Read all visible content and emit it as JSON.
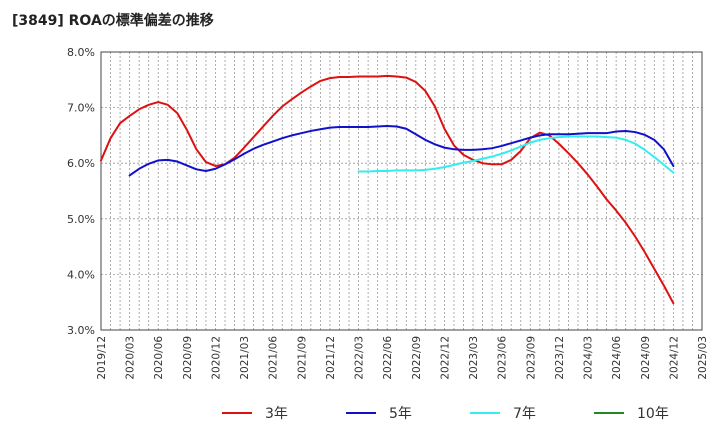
{
  "chart_data": {
    "type": "line",
    "title": "[3849]  ROAの標準偏差の推移",
    "xlabel": "",
    "ylabel": "",
    "ylim": [
      3.0,
      8.0
    ],
    "y_ticks": [
      "3.0%",
      "4.0%",
      "5.0%",
      "6.0%",
      "7.0%",
      "8.0%"
    ],
    "y_tick_values": [
      3,
      4,
      5,
      6,
      7,
      8
    ],
    "x_range": [
      "2019/12",
      "2025/03"
    ],
    "x_ticks": [
      "2019/12",
      "2020/03",
      "2020/06",
      "2020/09",
      "2020/12",
      "2021/03",
      "2021/06",
      "2021/09",
      "2021/12",
      "2022/03",
      "2022/06",
      "2022/09",
      "2022/12",
      "2023/03",
      "2023/06",
      "2023/09",
      "2023/12",
      "2024/03",
      "2024/06",
      "2024/09",
      "2024/12",
      "2025/03"
    ],
    "grid": true,
    "legend_position": "bottom",
    "series": [
      {
        "name": "3年",
        "color": "#dd1111",
        "points": [
          [
            "2019/12",
            6.05
          ],
          [
            "2020/01",
            6.45
          ],
          [
            "2020/02",
            6.72
          ],
          [
            "2020/03",
            6.85
          ],
          [
            "2020/04",
            6.97
          ],
          [
            "2020/05",
            7.05
          ],
          [
            "2020/06",
            7.1
          ],
          [
            "2020/07",
            7.05
          ],
          [
            "2020/08",
            6.9
          ],
          [
            "2020/09",
            6.6
          ],
          [
            "2020/10",
            6.25
          ],
          [
            "2020/11",
            6.02
          ],
          [
            "2020/12",
            5.95
          ],
          [
            "2021/01",
            5.98
          ],
          [
            "2021/02",
            6.1
          ],
          [
            "2021/03",
            6.28
          ],
          [
            "2021/04",
            6.47
          ],
          [
            "2021/05",
            6.66
          ],
          [
            "2021/06",
            6.85
          ],
          [
            "2021/07",
            7.02
          ],
          [
            "2021/08",
            7.15
          ],
          [
            "2021/09",
            7.27
          ],
          [
            "2021/10",
            7.38
          ],
          [
            "2021/11",
            7.48
          ],
          [
            "2021/12",
            7.53
          ],
          [
            "2022/01",
            7.55
          ],
          [
            "2022/02",
            7.55
          ],
          [
            "2022/03",
            7.56
          ],
          [
            "2022/04",
            7.56
          ],
          [
            "2022/05",
            7.56
          ],
          [
            "2022/06",
            7.57
          ],
          [
            "2022/07",
            7.56
          ],
          [
            "2022/08",
            7.54
          ],
          [
            "2022/09",
            7.46
          ],
          [
            "2022/10",
            7.3
          ],
          [
            "2022/11",
            7.02
          ],
          [
            "2022/12",
            6.62
          ],
          [
            "2023/01",
            6.32
          ],
          [
            "2023/02",
            6.15
          ],
          [
            "2023/03",
            6.06
          ],
          [
            "2023/04",
            6.0
          ],
          [
            "2023/05",
            5.98
          ],
          [
            "2023/06",
            5.98
          ],
          [
            "2023/07",
            6.06
          ],
          [
            "2023/08",
            6.22
          ],
          [
            "2023/09",
            6.45
          ],
          [
            "2023/10",
            6.55
          ],
          [
            "2023/11",
            6.5
          ],
          [
            "2023/12",
            6.35
          ],
          [
            "2024/01",
            6.18
          ],
          [
            "2024/02",
            6.0
          ],
          [
            "2024/03",
            5.8
          ],
          [
            "2024/04",
            5.58
          ],
          [
            "2024/05",
            5.35
          ],
          [
            "2024/06",
            5.15
          ],
          [
            "2024/07",
            4.93
          ],
          [
            "2024/08",
            4.68
          ],
          [
            "2024/09",
            4.4
          ],
          [
            "2024/10",
            4.1
          ],
          [
            "2024/11",
            3.8
          ],
          [
            "2024/12",
            3.48
          ]
        ]
      },
      {
        "name": "5年",
        "color": "#1111cc",
        "points": [
          [
            "2020/03",
            5.78
          ],
          [
            "2020/04",
            5.9
          ],
          [
            "2020/05",
            5.99
          ],
          [
            "2020/06",
            6.05
          ],
          [
            "2020/07",
            6.06
          ],
          [
            "2020/08",
            6.03
          ],
          [
            "2020/09",
            5.96
          ],
          [
            "2020/10",
            5.89
          ],
          [
            "2020/11",
            5.86
          ],
          [
            "2020/12",
            5.9
          ],
          [
            "2021/01",
            5.98
          ],
          [
            "2021/02",
            6.07
          ],
          [
            "2021/03",
            6.17
          ],
          [
            "2021/04",
            6.26
          ],
          [
            "2021/05",
            6.33
          ],
          [
            "2021/06",
            6.39
          ],
          [
            "2021/07",
            6.45
          ],
          [
            "2021/08",
            6.5
          ],
          [
            "2021/09",
            6.54
          ],
          [
            "2021/10",
            6.58
          ],
          [
            "2021/11",
            6.61
          ],
          [
            "2021/12",
            6.64
          ],
          [
            "2022/01",
            6.65
          ],
          [
            "2022/02",
            6.65
          ],
          [
            "2022/03",
            6.65
          ],
          [
            "2022/04",
            6.65
          ],
          [
            "2022/05",
            6.66
          ],
          [
            "2022/06",
            6.67
          ],
          [
            "2022/07",
            6.66
          ],
          [
            "2022/08",
            6.62
          ],
          [
            "2022/09",
            6.52
          ],
          [
            "2022/10",
            6.42
          ],
          [
            "2022/11",
            6.34
          ],
          [
            "2022/12",
            6.28
          ],
          [
            "2023/01",
            6.25
          ],
          [
            "2023/02",
            6.24
          ],
          [
            "2023/03",
            6.24
          ],
          [
            "2023/04",
            6.25
          ],
          [
            "2023/05",
            6.27
          ],
          [
            "2023/06",
            6.31
          ],
          [
            "2023/07",
            6.36
          ],
          [
            "2023/08",
            6.41
          ],
          [
            "2023/09",
            6.46
          ],
          [
            "2023/10",
            6.5
          ],
          [
            "2023/11",
            6.52
          ],
          [
            "2023/12",
            6.52
          ],
          [
            "2024/01",
            6.52
          ],
          [
            "2024/02",
            6.53
          ],
          [
            "2024/03",
            6.54
          ],
          [
            "2024/04",
            6.54
          ],
          [
            "2024/05",
            6.54
          ],
          [
            "2024/06",
            6.57
          ],
          [
            "2024/07",
            6.58
          ],
          [
            "2024/08",
            6.56
          ],
          [
            "2024/09",
            6.51
          ],
          [
            "2024/10",
            6.42
          ],
          [
            "2024/11",
            6.25
          ],
          [
            "2024/12",
            5.95
          ]
        ]
      },
      {
        "name": "7年",
        "color": "#33eeee",
        "points": [
          [
            "2022/03",
            5.85
          ],
          [
            "2022/04",
            5.85
          ],
          [
            "2022/05",
            5.86
          ],
          [
            "2022/06",
            5.86
          ],
          [
            "2022/07",
            5.87
          ],
          [
            "2022/08",
            5.87
          ],
          [
            "2022/09",
            5.87
          ],
          [
            "2022/10",
            5.88
          ],
          [
            "2022/11",
            5.9
          ],
          [
            "2022/12",
            5.93
          ],
          [
            "2023/01",
            5.97
          ],
          [
            "2023/02",
            6.01
          ],
          [
            "2023/03",
            6.04
          ],
          [
            "2023/04",
            6.08
          ],
          [
            "2023/05",
            6.12
          ],
          [
            "2023/06",
            6.17
          ],
          [
            "2023/07",
            6.23
          ],
          [
            "2023/08",
            6.3
          ],
          [
            "2023/09",
            6.37
          ],
          [
            "2023/10",
            6.42
          ],
          [
            "2023/11",
            6.45
          ],
          [
            "2023/12",
            6.47
          ],
          [
            "2024/01",
            6.48
          ],
          [
            "2024/02",
            6.48
          ],
          [
            "2024/03",
            6.48
          ],
          [
            "2024/04",
            6.48
          ],
          [
            "2024/05",
            6.47
          ],
          [
            "2024/06",
            6.46
          ],
          [
            "2024/07",
            6.42
          ],
          [
            "2024/08",
            6.35
          ],
          [
            "2024/09",
            6.24
          ],
          [
            "2024/10",
            6.11
          ],
          [
            "2024/11",
            5.97
          ],
          [
            "2024/12",
            5.83
          ]
        ]
      },
      {
        "name": "10年",
        "color": "#228822",
        "points": []
      }
    ]
  }
}
